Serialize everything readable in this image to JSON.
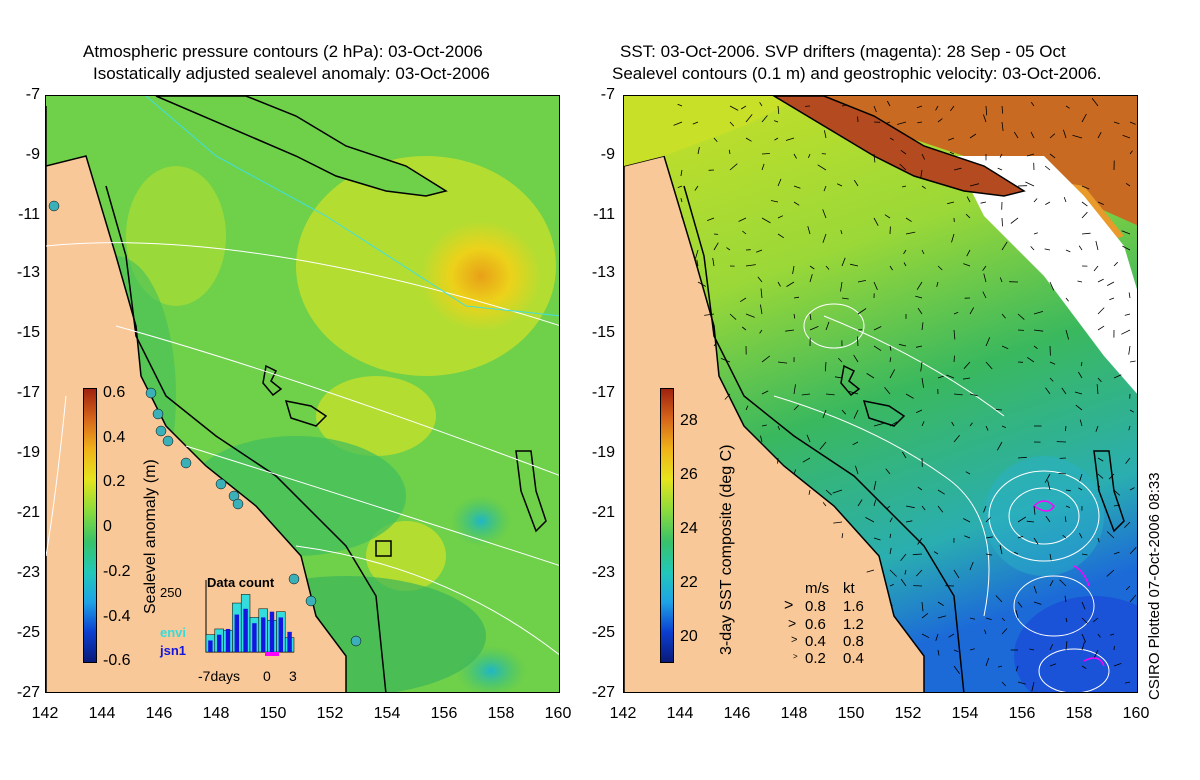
{
  "left_panel": {
    "title_line1": "Atmospheric pressure contours (2 hPa): 03-Oct-2006",
    "title_line2": "Isostatically adjusted sealevel anomaly: 03-Oct-2006",
    "y_ticks": [
      "-7",
      "-9",
      "-11",
      "-13",
      "-15",
      "-17",
      "-19",
      "-21",
      "-23",
      "-25",
      "-27"
    ],
    "x_ticks": [
      "142",
      "144",
      "146",
      "148",
      "150",
      "152",
      "154",
      "156",
      "158",
      "160"
    ],
    "colorbar": {
      "label": "Sealevel anomaly (m)",
      "ticks": [
        "0.6",
        "0.4",
        "0.2",
        "0",
        "-0.2",
        "-0.4",
        "-0.6"
      ],
      "colors": [
        "#0a1a7a",
        "#0b3fd0",
        "#1ea3e6",
        "#22c8b8",
        "#38c26a",
        "#8fdc3a",
        "#e6e41e",
        "#f0b21a",
        "#d6661a",
        "#a02210"
      ]
    },
    "data_count": {
      "title": "Data count",
      "max_label": "250",
      "series": [
        "envi",
        "jsn1"
      ],
      "series_colors": [
        "#33dddd",
        "#1515e0"
      ],
      "x_labels": [
        "-7days",
        "0",
        "3"
      ],
      "envi_values": [
        60,
        80,
        75,
        170,
        200,
        120,
        150,
        110,
        140,
        50
      ],
      "jsn1_values": [
        40,
        60,
        80,
        130,
        150,
        100,
        120,
        140,
        120,
        70
      ]
    }
  },
  "right_panel": {
    "title_line1": "SST: 03-Oct-2006. SVP drifters (magenta): 28 Sep - 05 Oct",
    "title_line2": "Sealevel contours (0.1 m) and geostrophic velocity: 03-Oct-2006.",
    "y_ticks": [
      "-7",
      "-9",
      "-11",
      "-13",
      "-15",
      "-17",
      "-19",
      "-21",
      "-23",
      "-25",
      "-27"
    ],
    "x_ticks": [
      "142",
      "144",
      "146",
      "148",
      "150",
      "152",
      "154",
      "156",
      "158",
      "160"
    ],
    "colorbar": {
      "label": "3-day SST composite (deg C)",
      "ticks": [
        "28",
        "26",
        "24",
        "22",
        "20"
      ],
      "colors": [
        "#0a1a7a",
        "#0b3fd0",
        "#1ea3e6",
        "#22c8b8",
        "#38c26a",
        "#8fdc3a",
        "#e6e41e",
        "#f0b21a",
        "#d6661a",
        "#a02210"
      ]
    },
    "velocity_legend": {
      "header_ms": "m/s",
      "header_kt": "kt",
      "rows": [
        {
          "ms": "0.8",
          "kt": "1.6"
        },
        {
          "ms": "0.6",
          "kt": "1.2"
        },
        {
          "ms": "0.4",
          "kt": "0.8"
        },
        {
          "ms": "0.2",
          "kt": "0.4"
        }
      ]
    }
  },
  "credit": "CSIRO Plotted 07-Oct-2006 08:33",
  "colors": {
    "land": "#f8c898",
    "coast": "#000000",
    "contour": "#ffffff",
    "cyan_line": "#40e0e0",
    "drifter": "#ff00ff"
  }
}
